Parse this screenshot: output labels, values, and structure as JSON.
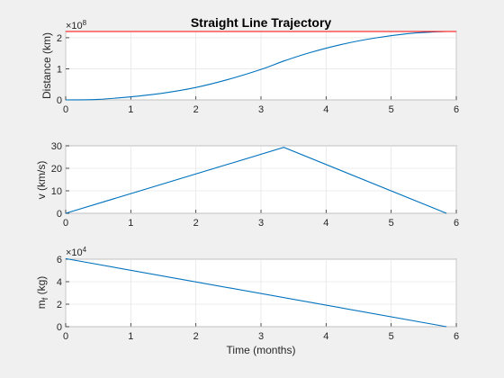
{
  "chart_data": [
    {
      "type": "line",
      "title": "Straight Line Trajectory",
      "xlabel": "",
      "ylabel": "Distance (km)",
      "exponent_base": "×10",
      "exponent_power": "8",
      "xlim": [
        0,
        6
      ],
      "ylim": [
        0,
        2.2
      ],
      "xticks": [
        "0",
        "1",
        "2",
        "3",
        "4",
        "5",
        "6"
      ],
      "yticks": [
        "0",
        "1",
        "2"
      ],
      "grid": true,
      "x": [
        0,
        0.5,
        1,
        1.5,
        2,
        2.5,
        3,
        3.35,
        3.75,
        4.25,
        4.75,
        5.25,
        5.6,
        5.85
      ],
      "series": [
        {
          "color": "#0072bd",
          "values": [
            0,
            0.017,
            0.1,
            0.22,
            0.4,
            0.66,
            0.98,
            1.25,
            1.52,
            1.79,
            1.99,
            2.13,
            2.18,
            2.2
          ]
        },
        {
          "color": "#ff0000",
          "constant": 2.2
        }
      ]
    },
    {
      "type": "line",
      "title": "",
      "xlabel": "",
      "ylabel": "v (km/s)",
      "xlim": [
        0,
        6
      ],
      "ylim": [
        0,
        30
      ],
      "xticks": [
        "0",
        "1",
        "2",
        "3",
        "4",
        "5",
        "6"
      ],
      "yticks": [
        "0",
        "10",
        "20",
        "30"
      ],
      "grid": true,
      "x": [
        0,
        3.35,
        5.85
      ],
      "series": [
        {
          "color": "#0072bd",
          "values": [
            0,
            29.3,
            0
          ]
        }
      ]
    },
    {
      "type": "line",
      "title": "",
      "xlabel": "Time (months)",
      "ylabel_main": "m",
      "ylabel_sub": "f",
      "ylabel_rest": " (kg)",
      "exponent_base": "×10",
      "exponent_power": "4",
      "xlim": [
        0,
        6
      ],
      "ylim": [
        0,
        6
      ],
      "xticks": [
        "0",
        "1",
        "2",
        "3",
        "4",
        "5",
        "6"
      ],
      "yticks": [
        "0",
        "2",
        "4",
        "6"
      ],
      "grid": true,
      "x": [
        0,
        5.85
      ],
      "series": [
        {
          "color": "#0072bd",
          "values": [
            6.05,
            0
          ]
        }
      ]
    }
  ]
}
